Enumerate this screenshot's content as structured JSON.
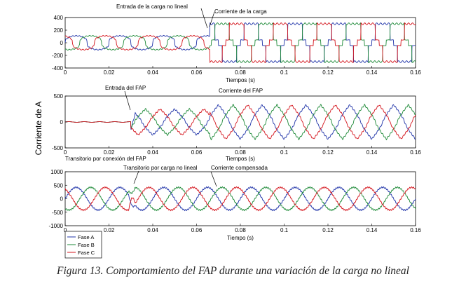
{
  "caption": "Figura 13. Comportamiento del FAP durante una variación de la carga no lineal",
  "y_axis_label": "Corriente de A",
  "colors": {
    "Fase A": "#1f33a8",
    "Fase B": "#1e8a38",
    "Fase C": "#d4141c"
  },
  "chart_data": [
    {
      "type": "line",
      "xlabel": "Tiempos (s)",
      "ylabel": "",
      "xlim": [
        0,
        0.16
      ],
      "ylim": [
        -400,
        400
      ],
      "xticks": [
        "0",
        "0.02",
        "0.04",
        "0.06",
        "0.08",
        "0.1",
        "0.12",
        "0.14",
        "0.16"
      ],
      "yticks": [
        "400",
        "200",
        "0",
        "-200",
        "-400"
      ],
      "annotations": [
        {
          "text": "Entrada de la carga no lineal",
          "x": 0.066
        },
        {
          "text": "Corriente de la carga",
          "x": 0.07
        }
      ],
      "series": [
        {
          "name": "Fase A",
          "description": "load current, quasi-square wave, ~±100 before t=0.066, ~±300 after"
        },
        {
          "name": "Fase B",
          "description": "same, shifted -120°"
        },
        {
          "name": "Fase C",
          "description": "same, shifted +120°"
        }
      ],
      "waveform": {
        "fundamental_hz": 50,
        "amp_before": 110,
        "amp_after": 300,
        "step_t": 0.066
      }
    },
    {
      "type": "line",
      "xlabel": "Tiempos (s)",
      "ylabel": "Corriente de A",
      "xlim": [
        0,
        0.16
      ],
      "ylim": [
        -500,
        500
      ],
      "xticks": [
        "0",
        "0.02",
        "0.04",
        "0.06",
        "0.08",
        "0.1",
        "0.12",
        "0.14",
        "0.16"
      ],
      "yticks": [
        "500",
        "0",
        "-500"
      ],
      "annotations": [
        {
          "text": "Entrada del FAP",
          "x": 0.03
        },
        {
          "text": "Corriente del FAP",
          "x": 0.072
        },
        {
          "text": "Transitorio por conexión del FAP",
          "x": 0.0
        }
      ],
      "series": [
        {
          "name": "Fase A",
          "description": "filter current, zero until t=0.03, sawtooth ~±250 after, ~±330 after t=0.066"
        },
        {
          "name": "Fase B",
          "description": "same, shifted -120°"
        },
        {
          "name": "Fase C",
          "description": "same, shifted +120°"
        }
      ],
      "waveform": {
        "fundamental_hz": 50,
        "start_t": 0.03,
        "amp_mid": 250,
        "amp_after": 330,
        "step_t": 0.066
      }
    },
    {
      "type": "line",
      "xlabel": "Tiempo (s)",
      "ylabel": "",
      "xlim": [
        0,
        0.16
      ],
      "ylim": [
        -1000,
        1000
      ],
      "xticks": [
        "0",
        "0.02",
        "0.04",
        "0.06",
        "0.08",
        "0.1",
        "0.12",
        "0.14",
        "0.16"
      ],
      "yticks": [
        "1000",
        "500",
        "0",
        "-500",
        "-1000"
      ],
      "annotations": [
        {
          "text": "Transitorio por carga no lineal",
          "x": 0.03
        },
        {
          "text": "Corriente compensada",
          "x": 0.07
        }
      ],
      "series": [
        {
          "name": "Fase A",
          "description": "compensated source current, sinusoidal ~±420"
        },
        {
          "name": "Fase B",
          "description": "same, shifted -120°"
        },
        {
          "name": "Fase C",
          "description": "same, shifted +120°"
        }
      ],
      "waveform": {
        "fundamental_hz": 50,
        "amp": 420
      }
    }
  ],
  "legend": [
    {
      "label": "Fase A",
      "color": "#1f33a8"
    },
    {
      "label": "Fase B",
      "color": "#1e8a38"
    },
    {
      "label": "Fase C",
      "color": "#d4141c"
    }
  ]
}
